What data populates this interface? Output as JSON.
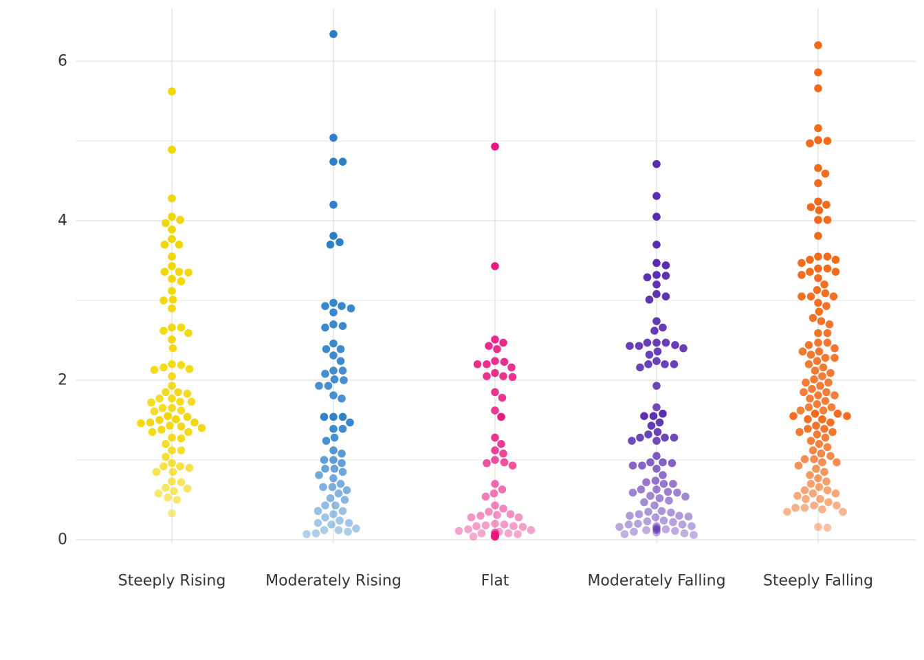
{
  "chart_data": {
    "type": "scatter",
    "subtype": "beeswarm",
    "title": "",
    "xlabel": "",
    "ylabel": "",
    "ylim": [
      -0.05,
      6.6
    ],
    "yticks": [
      0,
      2,
      4,
      6
    ],
    "ytick_labels": [
      "0",
      "2",
      "4",
      "6"
    ],
    "grid": true,
    "legend": "none",
    "opacity_encodes_value": true,
    "categories": [
      "Steeply Rising",
      "Moderately Rising",
      "Flat",
      "Moderately Falling",
      "Steeply Falling"
    ],
    "series": [
      {
        "color": "#f2d600",
        "values": [
          5.62,
          4.89,
          4.28,
          4.05,
          4.01,
          3.97,
          3.89,
          3.77,
          3.7,
          3.7,
          3.55,
          3.43,
          3.36,
          3.36,
          3.35,
          3.27,
          3.24,
          3.12,
          3.01,
          3.0,
          2.9,
          2.66,
          2.66,
          2.62,
          2.59,
          2.51,
          2.4,
          2.2,
          2.19,
          2.16,
          2.14,
          2.13,
          2.05,
          1.93,
          1.85,
          1.85,
          1.83,
          1.77,
          1.77,
          1.73,
          1.73,
          1.72,
          1.65,
          1.65,
          1.62,
          1.61,
          1.55,
          1.54,
          1.51,
          1.5,
          1.47,
          1.47,
          1.46,
          1.43,
          1.42,
          1.4,
          1.38,
          1.35,
          1.35,
          1.28,
          1.27,
          1.2,
          1.12,
          1.12,
          1.04,
          0.96,
          0.92,
          0.92,
          0.9,
          0.85,
          0.85,
          0.73,
          0.72,
          0.65,
          0.64,
          0.61,
          0.58,
          0.53,
          0.5,
          0.33
        ]
      },
      {
        "color": "#2d7fc8",
        "values": [
          6.34,
          5.04,
          4.74,
          4.74,
          4.2,
          3.81,
          3.73,
          3.7,
          2.97,
          2.93,
          2.93,
          2.9,
          2.85,
          2.7,
          2.68,
          2.66,
          2.46,
          2.39,
          2.39,
          2.31,
          2.24,
          2.12,
          2.12,
          2.08,
          2.01,
          2.0,
          1.93,
          1.93,
          1.81,
          1.77,
          1.54,
          1.54,
          1.54,
          1.47,
          1.39,
          1.39,
          1.28,
          1.24,
          1.12,
          1.08,
          1.0,
          1.0,
          0.96,
          0.89,
          0.89,
          0.85,
          0.81,
          0.77,
          0.7,
          0.66,
          0.66,
          0.62,
          0.58,
          0.52,
          0.5,
          0.43,
          0.43,
          0.36,
          0.36,
          0.32,
          0.28,
          0.24,
          0.21,
          0.21,
          0.19,
          0.14,
          0.12,
          0.12,
          0.1,
          0.08,
          0.07
        ]
      },
      {
        "color": "#e8177f",
        "values": [
          4.93,
          3.43,
          2.51,
          2.47,
          2.43,
          2.39,
          2.24,
          2.23,
          2.2,
          2.2,
          2.16,
          2.09,
          2.05,
          2.05,
          2.04,
          1.85,
          1.78,
          1.62,
          1.54,
          1.28,
          1.2,
          1.12,
          1.08,
          1.0,
          0.97,
          0.96,
          0.93,
          0.7,
          0.63,
          0.58,
          0.54,
          0.43,
          0.39,
          0.35,
          0.32,
          0.31,
          0.3,
          0.28,
          0.28,
          0.2,
          0.19,
          0.18,
          0.17,
          0.17,
          0.16,
          0.13,
          0.12,
          0.11,
          0.1,
          0.09,
          0.09,
          0.08,
          0.08,
          0.07,
          0.07,
          0.06,
          0.06,
          0.06,
          0.06,
          0.05,
          0.05,
          0.05,
          0.05,
          0.04,
          0.04,
          0.04,
          0.04,
          0.04,
          0.04,
          0.04,
          0.04,
          0.04
        ]
      },
      {
        "color": "#5a2bb0",
        "values": [
          4.71,
          4.31,
          4.05,
          3.7,
          3.47,
          3.44,
          3.32,
          3.31,
          3.29,
          3.2,
          3.08,
          3.05,
          3.01,
          2.74,
          2.66,
          2.62,
          2.47,
          2.47,
          2.47,
          2.44,
          2.43,
          2.43,
          2.4,
          2.36,
          2.32,
          2.24,
          2.2,
          2.2,
          2.2,
          2.16,
          1.93,
          1.66,
          1.58,
          1.55,
          1.55,
          1.47,
          1.43,
          1.35,
          1.32,
          1.28,
          1.28,
          1.28,
          1.24,
          1.24,
          1.05,
          0.97,
          0.97,
          0.96,
          0.93,
          0.93,
          0.89,
          0.81,
          0.74,
          0.72,
          0.7,
          0.7,
          0.63,
          0.63,
          0.6,
          0.59,
          0.59,
          0.55,
          0.54,
          0.52,
          0.49,
          0.47,
          0.43,
          0.36,
          0.35,
          0.34,
          0.32,
          0.3,
          0.3,
          0.29,
          0.28,
          0.24,
          0.23,
          0.22,
          0.2,
          0.19,
          0.19,
          0.17,
          0.17,
          0.16,
          0.15,
          0.13,
          0.13,
          0.12,
          0.12,
          0.11,
          0.1,
          0.09,
          0.08,
          0.07,
          0.06
        ]
      },
      {
        "color": "#f26a1b",
        "values": [
          6.2,
          5.86,
          5.66,
          5.16,
          5.01,
          5.0,
          4.97,
          4.66,
          4.59,
          4.47,
          4.24,
          4.2,
          4.17,
          4.13,
          4.01,
          4.01,
          3.81,
          3.55,
          3.55,
          3.51,
          3.51,
          3.47,
          3.4,
          3.4,
          3.36,
          3.36,
          3.32,
          3.28,
          3.2,
          3.13,
          3.09,
          3.05,
          3.05,
          3.05,
          2.97,
          2.93,
          2.86,
          2.78,
          2.74,
          2.7,
          2.59,
          2.59,
          2.47,
          2.47,
          2.44,
          2.4,
          2.36,
          2.36,
          2.32,
          2.28,
          2.28,
          2.24,
          2.2,
          2.16,
          2.12,
          2.09,
          2.05,
          2.01,
          1.97,
          1.97,
          1.93,
          1.89,
          1.85,
          1.85,
          1.81,
          1.81,
          1.77,
          1.74,
          1.7,
          1.66,
          1.66,
          1.62,
          1.62,
          1.58,
          1.58,
          1.55,
          1.55,
          1.51,
          1.51,
          1.47,
          1.43,
          1.39,
          1.39,
          1.35,
          1.35,
          1.32,
          1.28,
          1.24,
          1.2,
          1.16,
          1.12,
          1.08,
          1.05,
          1.01,
          1.01,
          0.97,
          0.97,
          0.93,
          0.89,
          0.85,
          0.81,
          0.77,
          0.73,
          0.7,
          0.66,
          0.62,
          0.62,
          0.58,
          0.58,
          0.55,
          0.51,
          0.51,
          0.47,
          0.43,
          0.43,
          0.4,
          0.4,
          0.38,
          0.35,
          0.35,
          0.16,
          0.15
        ]
      }
    ]
  }
}
